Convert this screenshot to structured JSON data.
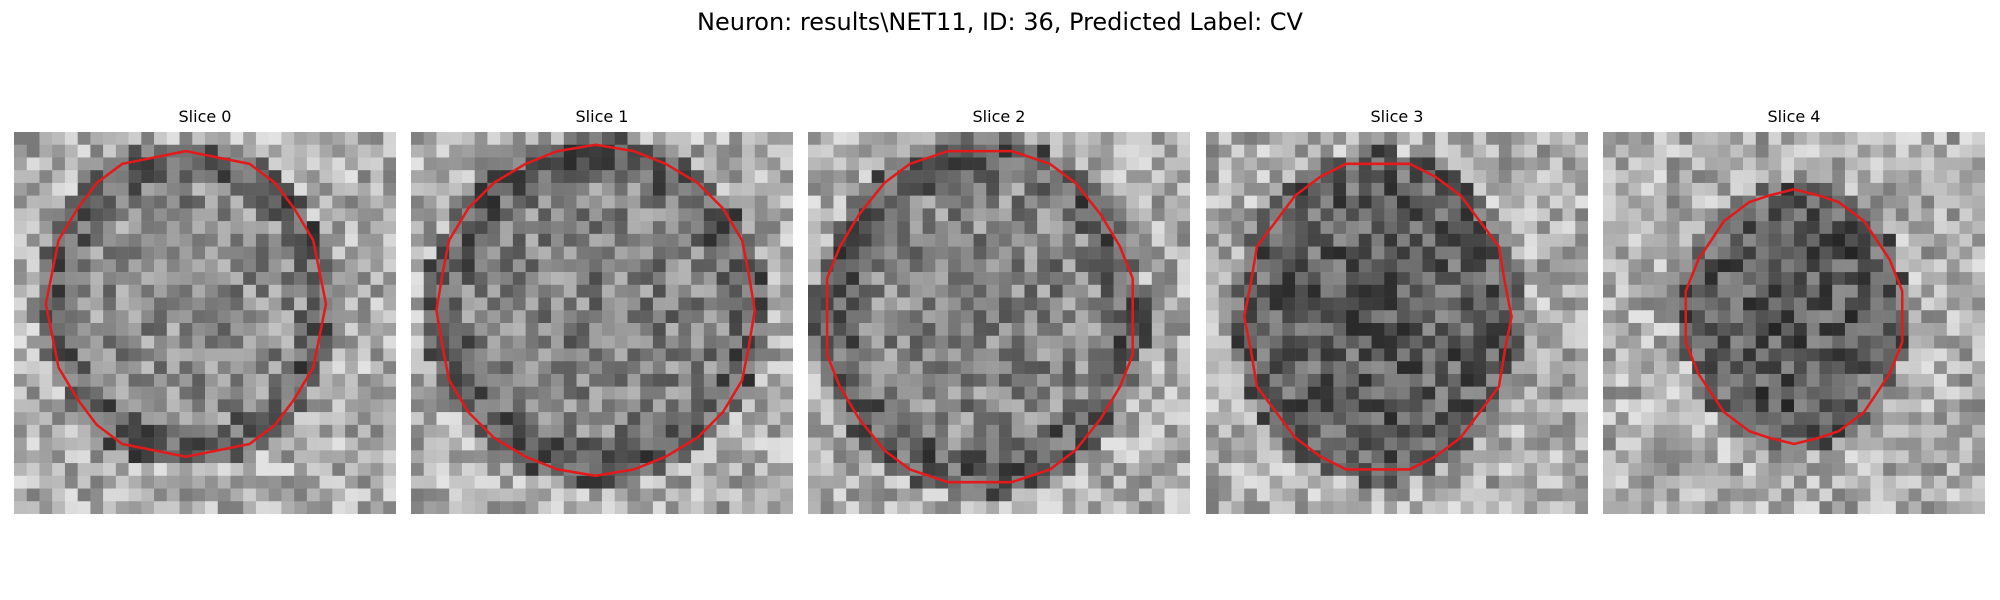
{
  "figure": {
    "title": "Neuron: results\\NET11, ID: 36, Predicted Label: CV"
  },
  "contour_color": "#e31a1c",
  "slices": [
    {
      "title": "Slice 0",
      "contour_center": [
        13.5,
        13.5
      ],
      "contour_radius": [
        11.0,
        12.0
      ],
      "darkness": 0.15
    },
    {
      "title": "Slice 1",
      "contour_center": [
        14.5,
        14.0
      ],
      "contour_radius": [
        12.5,
        12.8
      ],
      "darkness": 0.25
    },
    {
      "title": "Slice 2",
      "contour_center": [
        13.5,
        14.5
      ],
      "contour_radius": [
        12.2,
        13.2
      ],
      "darkness": 0.22
    },
    {
      "title": "Slice 3",
      "contour_center": [
        13.5,
        14.5
      ],
      "contour_radius": [
        10.5,
        12.2
      ],
      "darkness": 0.55
    },
    {
      "title": "Slice 4",
      "contour_center": [
        15.0,
        14.5
      ],
      "contour_radius": [
        8.5,
        9.8
      ],
      "darkness": 0.6
    }
  ]
}
